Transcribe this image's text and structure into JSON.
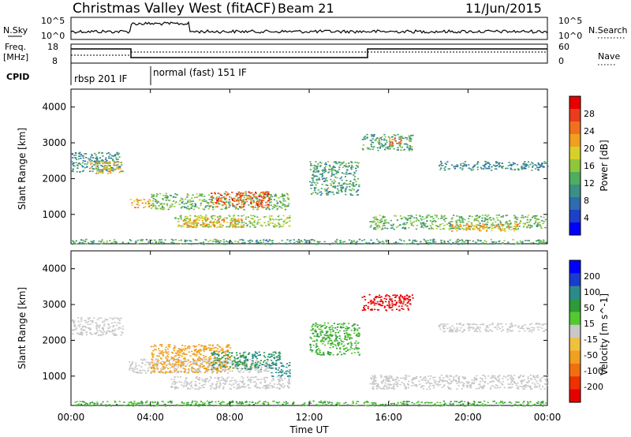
{
  "header": {
    "title": "Christmas Valley West (fitACF)",
    "beam": "Beam 21",
    "date": "11/Jun/2015"
  },
  "strip": {
    "nsky_label": "N.Sky",
    "nsky_ticks": [
      "10^5",
      "10^0"
    ],
    "nsearch_label": "N.Search",
    "freq_label": "Freq.",
    "freq_unit": "[MHz]",
    "freq_ticks": [
      "18",
      "8"
    ],
    "nave_label": "Nave",
    "nave_ticks": [
      "60",
      "0"
    ],
    "cpid_label": "CPID",
    "cpid_segments": [
      {
        "label": "rbsp 201 IF",
        "start_hour": 0.0,
        "end_hour": 3.8
      },
      {
        "label": "normal (fast) 151 IF",
        "start_hour": 3.8,
        "end_hour": 24.0
      }
    ]
  },
  "chart_data": [
    {
      "type": "heatmap",
      "name": "power",
      "xlabel": "",
      "ylabel": "Slant Range [km]",
      "xlim": [
        0,
        24
      ],
      "ylim": [
        180,
        4500
      ],
      "yticks": [
        1000,
        2000,
        3000,
        4000
      ],
      "colorbar": {
        "label": "Power [dB]",
        "ticks": [
          4,
          8,
          12,
          16,
          20,
          24,
          28
        ],
        "range": [
          0,
          32
        ],
        "colors": [
          "#0000ff",
          "#1e3fc8",
          "#2f6bb0",
          "#3b8f86",
          "#4fae5e",
          "#8fc63c",
          "#d7d02a",
          "#f0a020",
          "#f07020",
          "#e83c1c",
          "#e60000"
        ]
      },
      "regions": [
        {
          "t0": 0.0,
          "t1": 2.6,
          "r0": 2200,
          "r1": 2750,
          "value": 10
        },
        {
          "t0": 0.9,
          "t1": 2.5,
          "r0": 2150,
          "r1": 2500,
          "value": 20
        },
        {
          "t0": 2.9,
          "t1": 4.0,
          "r0": 1200,
          "r1": 1450,
          "value": 22
        },
        {
          "t0": 4.0,
          "t1": 11.0,
          "r0": 1150,
          "r1": 1600,
          "value": 14
        },
        {
          "t0": 7.0,
          "t1": 10.0,
          "r0": 1200,
          "r1": 1650,
          "value": 26
        },
        {
          "t0": 5.2,
          "t1": 11.0,
          "r0": 650,
          "r1": 1000,
          "value": 16
        },
        {
          "t0": 5.6,
          "t1": 8.6,
          "r0": 650,
          "r1": 900,
          "value": 22
        },
        {
          "t0": 15.0,
          "t1": 24.0,
          "r0": 600,
          "r1": 1000,
          "value": 14
        },
        {
          "t0": 19.0,
          "t1": 22.5,
          "r0": 550,
          "r1": 750,
          "value": 22
        },
        {
          "t0": 14.6,
          "t1": 17.2,
          "r0": 2800,
          "r1": 3250,
          "value": 12
        },
        {
          "t0": 16.0,
          "t1": 16.6,
          "r0": 2950,
          "r1": 3200,
          "value": 24
        },
        {
          "t0": 12.0,
          "t1": 14.5,
          "r0": 1550,
          "r1": 2500,
          "value": 12
        },
        {
          "t0": 18.5,
          "t1": 24.0,
          "r0": 2250,
          "r1": 2500,
          "value": 10
        },
        {
          "t0": 0.0,
          "t1": 24.0,
          "r0": 180,
          "r1": 320,
          "value": 12
        }
      ]
    },
    {
      "type": "heatmap",
      "name": "velocity",
      "xlabel": "Time UT",
      "ylabel": "Slant Range [km]",
      "xlim": [
        0,
        24
      ],
      "ylim": [
        180,
        4500
      ],
      "xticks": [
        "00:00",
        "04:00",
        "08:00",
        "12:00",
        "16:00",
        "20:00",
        "00:00"
      ],
      "yticks": [
        1000,
        2000,
        3000,
        4000
      ],
      "colorbar": {
        "label": "Velocity [m s^-1]",
        "ticks": [
          "200",
          "100",
          "50",
          "15",
          "-15",
          "-50",
          "-100",
          "-200"
        ],
        "colors": [
          "#0000ff",
          "#1a3ccc",
          "#2b8b8b",
          "#2f9a3a",
          "#55c830",
          "#c8c8c8",
          "#f0c040",
          "#f0a020",
          "#f07010",
          "#f03000",
          "#e60000"
        ]
      },
      "regions": [
        {
          "t0": 0.0,
          "t1": 2.6,
          "r0": 2150,
          "r1": 2650,
          "value": 0
        },
        {
          "t0": 2.9,
          "t1": 10.0,
          "r0": 1100,
          "r1": 1500,
          "value": 0
        },
        {
          "t0": 4.0,
          "t1": 8.0,
          "r0": 1100,
          "r1": 1900,
          "value": -40
        },
        {
          "t0": 7.0,
          "t1": 10.5,
          "r0": 1200,
          "r1": 1700,
          "value": 40
        },
        {
          "t0": 10.0,
          "t1": 11.0,
          "r0": 1000,
          "r1": 1400,
          "value": 50
        },
        {
          "t0": 5.0,
          "t1": 11.0,
          "r0": 650,
          "r1": 1000,
          "value": 0
        },
        {
          "t0": 15.0,
          "t1": 24.0,
          "r0": 650,
          "r1": 1050,
          "value": 0
        },
        {
          "t0": 14.6,
          "t1": 17.2,
          "r0": 2850,
          "r1": 3300,
          "value": -200
        },
        {
          "t0": 12.0,
          "t1": 14.5,
          "r0": 1600,
          "r1": 2500,
          "value": 30
        },
        {
          "t0": 18.5,
          "t1": 24.0,
          "r0": 2250,
          "r1": 2500,
          "value": 0
        },
        {
          "t0": 0.0,
          "t1": 24.0,
          "r0": 180,
          "r1": 320,
          "value": 30
        }
      ]
    }
  ]
}
